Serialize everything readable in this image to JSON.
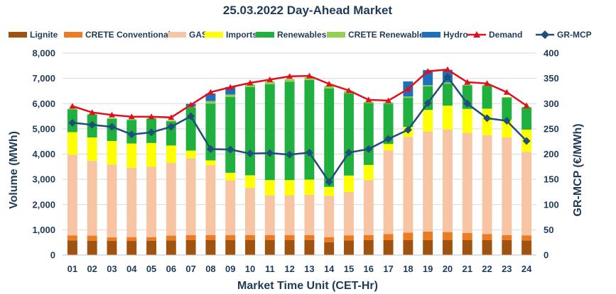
{
  "chart_data": {
    "type": "bar",
    "title": "25.03.2022  Day-Ahead Market",
    "xlabel": "Market Time Unit (CET-Hr)",
    "ylabel": "Volume (MWh)",
    "y2label": "GR-MCP (€/MWh)",
    "ylim": [
      0,
      8000
    ],
    "y2lim": [
      0,
      400
    ],
    "yticks": [
      "0",
      "1,000",
      "2,000",
      "3,000",
      "4,000",
      "5,000",
      "6,000",
      "7,000",
      "8,000"
    ],
    "y2ticks": [
      "0",
      "50",
      "100",
      "150",
      "200",
      "250",
      "300",
      "350",
      "400"
    ],
    "categories": [
      "01",
      "02",
      "03",
      "04",
      "05",
      "06",
      "07",
      "08",
      "09",
      "10",
      "11",
      "12",
      "13",
      "14",
      "15",
      "16",
      "17",
      "18",
      "19",
      "20",
      "21",
      "22",
      "23",
      "24"
    ],
    "stacked_series": [
      {
        "name": "Lignite",
        "color": "#a0520f",
        "values": [
          580,
          570,
          560,
          560,
          570,
          580,
          590,
          590,
          590,
          590,
          590,
          590,
          590,
          510,
          580,
          590,
          590,
          590,
          590,
          590,
          590,
          590,
          590,
          580
        ]
      },
      {
        "name": "CRETE Conventional",
        "color": "#ec7c24",
        "values": [
          200,
          200,
          140,
          150,
          140,
          190,
          200,
          200,
          200,
          200,
          200,
          200,
          200,
          200,
          200,
          200,
          240,
          300,
          340,
          320,
          280,
          240,
          200,
          200
        ]
      },
      {
        "name": "GAS",
        "color": "#f7c4a4",
        "values": [
          3190,
          2970,
          2880,
          2750,
          2790,
          2890,
          3050,
          2760,
          2170,
          1870,
          1580,
          1580,
          1600,
          1640,
          1720,
          2180,
          3320,
          3790,
          3970,
          4060,
          3970,
          3920,
          3870,
          3310
        ]
      },
      {
        "name": "Imports",
        "color": "#ffff00",
        "values": [
          900,
          920,
          940,
          960,
          940,
          680,
          300,
          200,
          300,
          500,
          600,
          600,
          600,
          350,
          650,
          600,
          250,
          400,
          850,
          950,
          950,
          1050,
          700,
          880
        ]
      },
      {
        "name": "Renewables",
        "color": "#1fb040",
        "values": [
          900,
          900,
          880,
          930,
          960,
          960,
          1700,
          2250,
          3000,
          3500,
          3800,
          3900,
          3950,
          3900,
          3250,
          2450,
          1600,
          1150,
          930,
          870,
          930,
          900,
          870,
          870
        ]
      },
      {
        "name": "CRETE Renewables",
        "color": "#92d050",
        "values": [
          30,
          30,
          30,
          30,
          30,
          30,
          50,
          100,
          100,
          100,
          100,
          100,
          100,
          100,
          100,
          50,
          50,
          50,
          50,
          50,
          30,
          30,
          30,
          30
        ]
      },
      {
        "name": "Hydro",
        "color": "#1f6fbf",
        "values": [
          0,
          0,
          0,
          0,
          0,
          0,
          100,
          300,
          300,
          0,
          0,
          0,
          0,
          0,
          0,
          0,
          0,
          600,
          600,
          500,
          0,
          0,
          0,
          0
        ]
      }
    ],
    "line_series": [
      {
        "name": "Demand",
        "color": "#e0101c",
        "axis": "left",
        "values": [
          5900,
          5650,
          5550,
          5480,
          5480,
          5450,
          5950,
          6450,
          6650,
          6820,
          6950,
          7080,
          7100,
          6780,
          6520,
          6150,
          6120,
          6580,
          7280,
          7350,
          6850,
          6800,
          6450,
          5920
        ]
      },
      {
        "name": "GR-MCP",
        "color": "#1f4e79",
        "axis": "right",
        "values": [
          262,
          258,
          254,
          239,
          243,
          254,
          275,
          210,
          209,
          201,
          202,
          199,
          203,
          145,
          203,
          210,
          230,
          248,
          301,
          353,
          300,
          271,
          266,
          226
        ]
      }
    ],
    "legend_position": "top"
  }
}
